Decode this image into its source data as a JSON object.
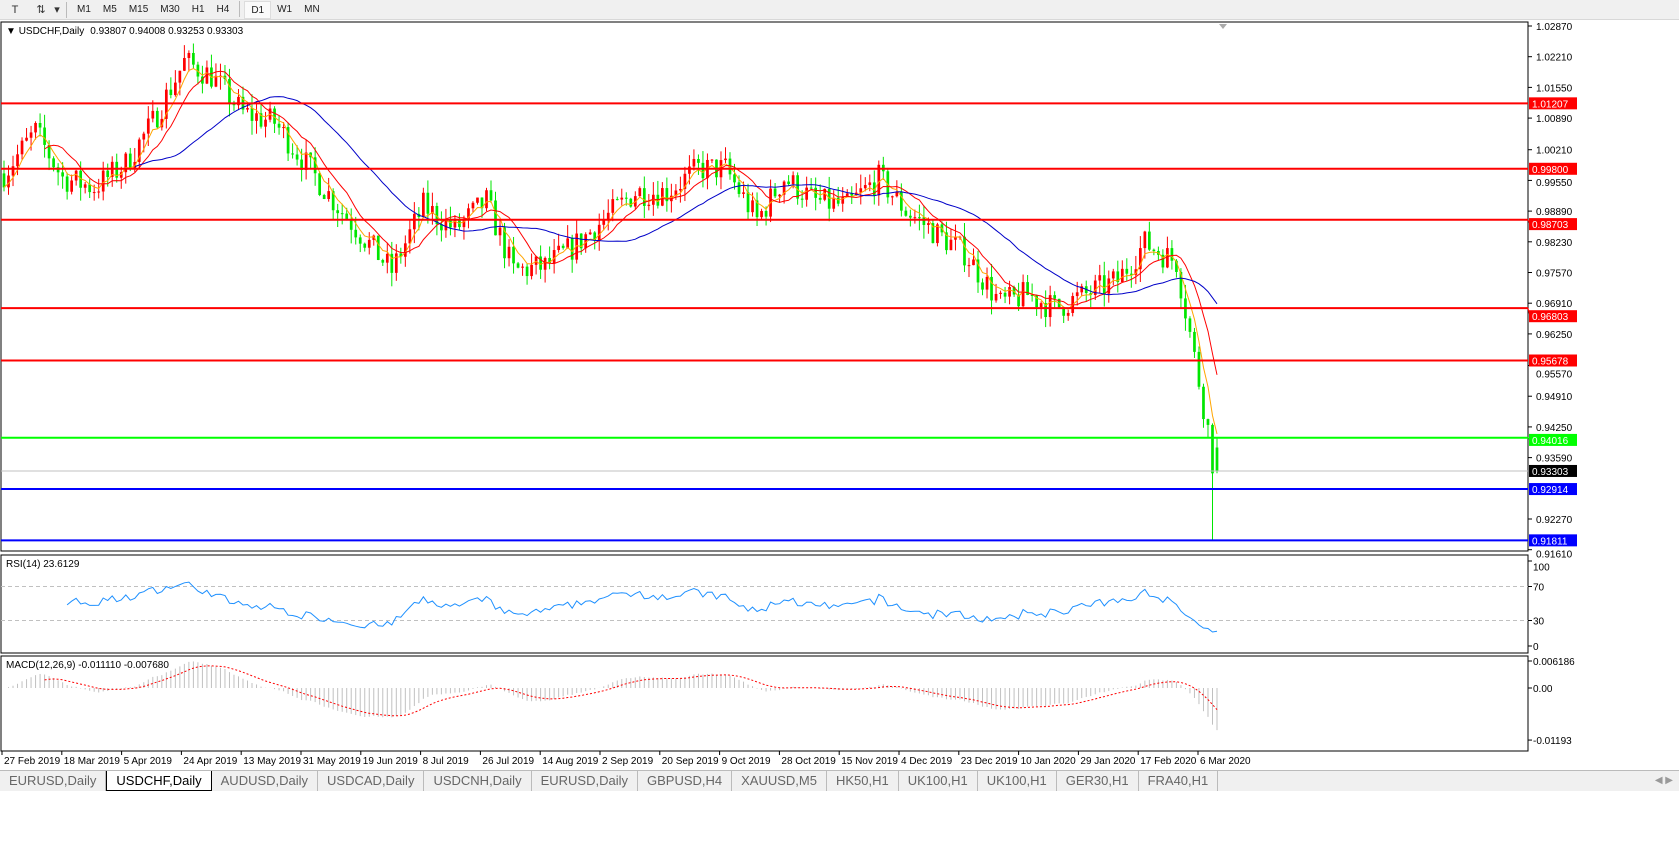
{
  "toolbar": {
    "timeframes": [
      "M1",
      "M5",
      "M15",
      "M30",
      "H1",
      "H4",
      "D1",
      "W1",
      "MN"
    ],
    "active_timeframe": "D1",
    "icons": [
      "text-tool-icon",
      "line-tools-icon",
      "dropdown-arrow-icon"
    ]
  },
  "chart_header": {
    "symbol": "USDCHF,Daily",
    "ohlc": "0.93807 0.94008 0.93253 0.93303"
  },
  "chart_data": {
    "type": "candlestick",
    "symbol": "USDCHF",
    "period": "Daily",
    "last_bar": {
      "open": 0.93807,
      "high": 0.94008,
      "low": 0.93253,
      "close": 0.93303
    },
    "price_axis_ticks": [
      "1.02870",
      "1.02210",
      "1.01550",
      "1.00890",
      "1.00210",
      "0.99550",
      "0.98890",
      "0.98230",
      "0.97570",
      "0.96910",
      "0.96250",
      "0.95570",
      "0.94910",
      "0.94250",
      "0.93590",
      "0.92270",
      "0.91610"
    ],
    "ylim": [
      0.9161,
      1.0287
    ],
    "date_labels": [
      "27 Feb 2019",
      "18 Mar 2019",
      "5 Apr 2019",
      "24 Apr 2019",
      "13 May 2019",
      "31 May 2019",
      "19 Jun 2019",
      "8 Jul 2019",
      "26 Jul 2019",
      "14 Aug 2019",
      "2 Sep 2019",
      "20 Sep 2019",
      "9 Oct 2019",
      "28 Oct 2019",
      "15 Nov 2019",
      "4 Dec 2019",
      "23 Dec 2019",
      "10 Jan 2020",
      "29 Jan 2020",
      "17 Feb 2020",
      "6 Mar 2020"
    ],
    "approx_closes": [
      [
        "2019-02-27",
        0.997
      ],
      [
        "2019-03-08",
        1.006
      ],
      [
        "2019-03-18",
        0.996
      ],
      [
        "2019-03-27",
        0.994
      ],
      [
        "2019-04-05",
        0.999
      ],
      [
        "2019-04-15",
        1.008
      ],
      [
        "2019-04-24",
        1.021
      ],
      [
        "2019-05-02",
        1.018
      ],
      [
        "2019-05-13",
        1.01
      ],
      [
        "2019-05-22",
        1.008
      ],
      [
        "2019-05-31",
        0.999
      ],
      [
        "2019-06-11",
        0.99
      ],
      [
        "2019-06-19",
        0.983
      ],
      [
        "2019-06-27",
        0.976
      ],
      [
        "2019-07-08",
        0.99
      ],
      [
        "2019-07-17",
        0.985
      ],
      [
        "2019-07-26",
        0.991
      ],
      [
        "2019-08-05",
        0.976
      ],
      [
        "2019-08-14",
        0.977
      ],
      [
        "2019-08-22",
        0.981
      ],
      [
        "2019-09-02",
        0.987
      ],
      [
        "2019-09-11",
        0.993
      ],
      [
        "2019-09-20",
        0.993
      ],
      [
        "2019-10-01",
        0.998
      ],
      [
        "2019-10-09",
        0.998
      ],
      [
        "2019-10-18",
        0.987
      ],
      [
        "2019-10-28",
        0.996
      ],
      [
        "2019-11-06",
        0.991
      ],
      [
        "2019-11-15",
        0.99
      ],
      [
        "2019-11-26",
        0.996
      ],
      [
        "2019-12-04",
        0.989
      ],
      [
        "2019-12-13",
        0.984
      ],
      [
        "2019-12-23",
        0.98
      ],
      [
        "2020-01-02",
        0.969
      ],
      [
        "2020-01-10",
        0.971
      ],
      [
        "2020-01-20",
        0.968
      ],
      [
        "2020-01-29",
        0.971
      ],
      [
        "2020-02-07",
        0.974
      ],
      [
        "2020-02-17",
        0.982
      ],
      [
        "2020-02-26",
        0.978
      ],
      [
        "2020-03-06",
        0.942
      ],
      [
        "2020-03-09",
        0.935
      ],
      [
        "2020-03-10",
        0.93303
      ]
    ],
    "up_color": "#ff0000",
    "down_color": "#00e600",
    "moving_averages": [
      {
        "color": "#ffa500"
      },
      {
        "color": "#ff0000"
      },
      {
        "color": "#0000c8"
      }
    ],
    "horizontal_levels": [
      {
        "price": "1.01207",
        "color": "#ff0000"
      },
      {
        "price": "0.99800",
        "color": "#ff0000"
      },
      {
        "price": "0.98703",
        "color": "#ff0000"
      },
      {
        "price": "0.96803",
        "color": "#ff0000"
      },
      {
        "price": "0.95678",
        "color": "#ff0000"
      },
      {
        "price": "0.94016",
        "color": "#00ff00"
      },
      {
        "price": "0.93303",
        "color": "#000000",
        "bid": true
      },
      {
        "price": "0.92914",
        "color": "#0000ff"
      },
      {
        "price": "0.91811",
        "color": "#0000ff"
      }
    ],
    "rsi": {
      "label": "RSI(14) 23.6129",
      "levels": [
        "100",
        "70",
        "30",
        "0"
      ],
      "color": "#1e90ff"
    },
    "macd": {
      "label": "MACD(12,26,9) -0.011110 -0.007680",
      "ticks": [
        "0.006186",
        "0.00",
        "-0.01193"
      ],
      "signal_color": "#ff0000",
      "hist_color": "#c0c0c0"
    }
  },
  "tabs": [
    {
      "label": "EURUSD,Daily"
    },
    {
      "label": "USDCHF,Daily",
      "active": true
    },
    {
      "label": "AUDUSD,Daily"
    },
    {
      "label": "USDCAD,Daily"
    },
    {
      "label": "USDCNH,Daily"
    },
    {
      "label": "EURUSD,Daily"
    },
    {
      "label": "GBPUSD,H4"
    },
    {
      "label": "XAUUSD,M5"
    },
    {
      "label": "HK50,H1"
    },
    {
      "label": "UK100,H1"
    },
    {
      "label": "UK100,H1"
    },
    {
      "label": "GER30,H1"
    },
    {
      "label": "FRA40,H1"
    }
  ]
}
